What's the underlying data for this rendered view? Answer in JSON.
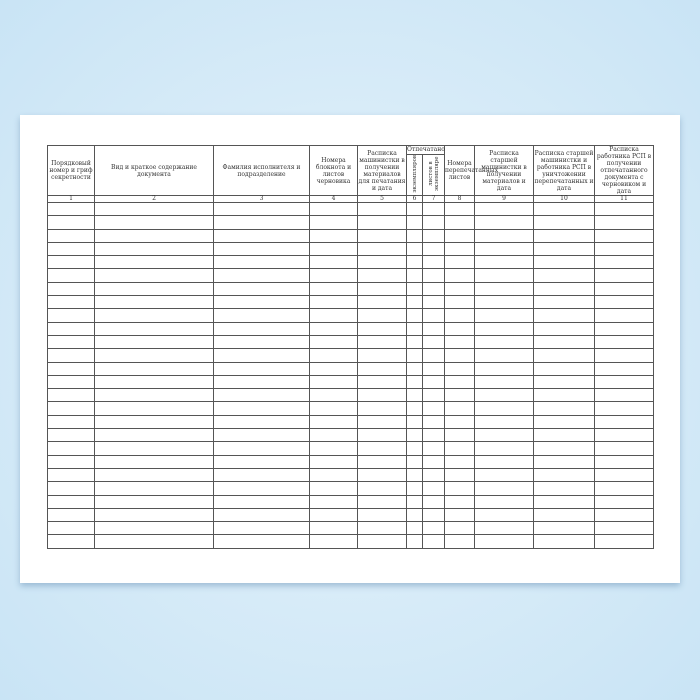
{
  "form": {
    "headers": [
      "Порядковый номер и гриф секретности",
      "Вид и краткое содержание документа",
      "Фамилия исполнителя и подразделение",
      "Номера блокнота и листов черновика",
      "Расписка машинистки в получении материалов для печатания и дата",
      "Отпечатано",
      "экземпляров",
      "листов в экземпляре",
      "Номера перепечатанных листов",
      "Расписка старшей машинистки в получении материалов и дата",
      "Расписка старшей машинистки и работника РСП в уничтожении перепечатанных и дата",
      "Расписка работника РСП в получении отпечатанного документа с черновиком и дата"
    ],
    "column_numbers": [
      "1",
      "2",
      "3",
      "4",
      "5",
      "6",
      "7",
      "8",
      "9",
      "10",
      "11"
    ],
    "empty_rows": 26
  },
  "colors": {
    "background": "#cfe7f6",
    "sheet": "#ffffff",
    "lines": "#555555"
  }
}
